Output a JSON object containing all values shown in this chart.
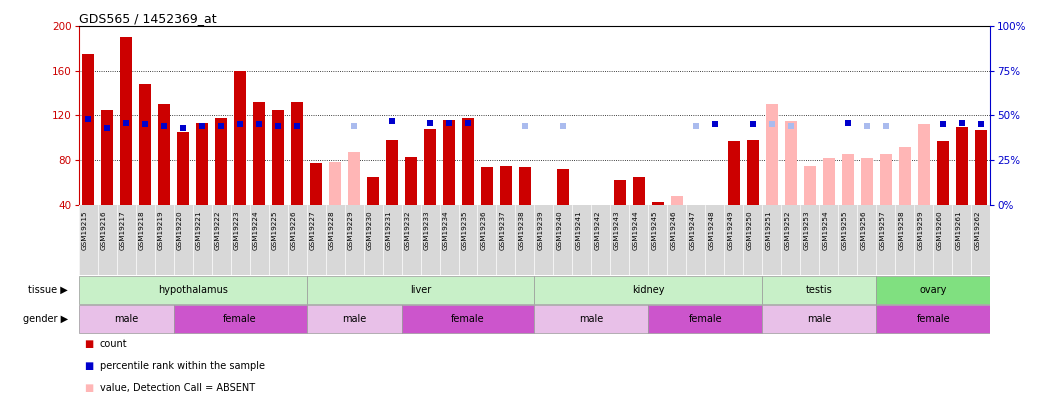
{
  "title": "GDS565 / 1452369_at",
  "samples": [
    "GSM19215",
    "GSM19216",
    "GSM19217",
    "GSM19218",
    "GSM19219",
    "GSM19220",
    "GSM19221",
    "GSM19222",
    "GSM19223",
    "GSM19224",
    "GSM19225",
    "GSM19226",
    "GSM19227",
    "GSM19228",
    "GSM19229",
    "GSM19230",
    "GSM19231",
    "GSM19232",
    "GSM19233",
    "GSM19234",
    "GSM19235",
    "GSM19236",
    "GSM19237",
    "GSM19238",
    "GSM19239",
    "GSM19240",
    "GSM19241",
    "GSM19242",
    "GSM19243",
    "GSM19244",
    "GSM19245",
    "GSM19246",
    "GSM19247",
    "GSM19248",
    "GSM19249",
    "GSM19250",
    "GSM19251",
    "GSM19252",
    "GSM19253",
    "GSM19254",
    "GSM19255",
    "GSM19256",
    "GSM19257",
    "GSM19258",
    "GSM19259",
    "GSM19260",
    "GSM19261",
    "GSM19262"
  ],
  "count_present": [
    175,
    125,
    190,
    148,
    130,
    105,
    113,
    118,
    160,
    132,
    125,
    132,
    77,
    null,
    null,
    65,
    98,
    83,
    108,
    116,
    118,
    74,
    75,
    74,
    null,
    72,
    null,
    null,
    62,
    65,
    42,
    null,
    null,
    null,
    97,
    98,
    null,
    null,
    null,
    null,
    null,
    null,
    null,
    null,
    null,
    97,
    110,
    107
  ],
  "count_absent": [
    null,
    null,
    null,
    null,
    null,
    null,
    null,
    null,
    null,
    null,
    null,
    null,
    null,
    78,
    87,
    null,
    null,
    null,
    null,
    null,
    null,
    null,
    null,
    null,
    null,
    null,
    null,
    null,
    null,
    null,
    null,
    48,
    null,
    null,
    null,
    null,
    130,
    115,
    75,
    82,
    85,
    82,
    85,
    92,
    112,
    null,
    null,
    null
  ],
  "rank_present": [
    48,
    43,
    46,
    45,
    44,
    43,
    44,
    44,
    45,
    45,
    44,
    44,
    null,
    null,
    null,
    null,
    47,
    null,
    46,
    46,
    46,
    null,
    null,
    null,
    null,
    null,
    null,
    null,
    null,
    null,
    null,
    null,
    null,
    45,
    null,
    45,
    null,
    null,
    null,
    null,
    46,
    null,
    null,
    null,
    null,
    45,
    46,
    45
  ],
  "rank_absent": [
    null,
    null,
    null,
    null,
    null,
    null,
    null,
    null,
    null,
    null,
    null,
    null,
    null,
    null,
    44,
    null,
    null,
    null,
    null,
    null,
    null,
    null,
    null,
    44,
    null,
    44,
    null,
    null,
    null,
    null,
    null,
    null,
    44,
    null,
    null,
    null,
    45,
    44,
    null,
    null,
    null,
    44,
    44,
    null,
    null,
    null,
    null,
    null
  ],
  "tissue_groups": [
    {
      "label": "hypothalamus",
      "start": 0,
      "end": 12
    },
    {
      "label": "liver",
      "start": 12,
      "end": 24
    },
    {
      "label": "kidney",
      "start": 24,
      "end": 36
    },
    {
      "label": "testis",
      "start": 36,
      "end": 42
    },
    {
      "label": "ovary",
      "start": 42,
      "end": 48
    }
  ],
  "gender_groups": [
    {
      "label": "male",
      "start": 0,
      "end": 5
    },
    {
      "label": "female",
      "start": 5,
      "end": 12
    },
    {
      "label": "male",
      "start": 12,
      "end": 17
    },
    {
      "label": "female",
      "start": 17,
      "end": 24
    },
    {
      "label": "male",
      "start": 24,
      "end": 30
    },
    {
      "label": "female",
      "start": 30,
      "end": 36
    },
    {
      "label": "male",
      "start": 36,
      "end": 42
    },
    {
      "label": "female",
      "start": 42,
      "end": 48
    }
  ],
  "ylim_left": [
    40,
    200
  ],
  "ylim_right": [
    0,
    100
  ],
  "yticks_left": [
    40,
    80,
    120,
    160,
    200
  ],
  "yticks_right": [
    0,
    25,
    50,
    75,
    100
  ],
  "count_color": "#cc0000",
  "count_absent_color": "#ffb6b6",
  "rank_color": "#0000cc",
  "rank_absent_color": "#aabbee",
  "tissue_color_light": "#c8f0c8",
  "tissue_color_ovary": "#80e080",
  "gender_color_male": "#e8c0e8",
  "gender_color_female": "#cc55cc",
  "xtick_bg": "#d8d8d8",
  "bg_color": "#ffffff",
  "left_axis_color": "#cc0000",
  "right_axis_color": "#0000cc"
}
